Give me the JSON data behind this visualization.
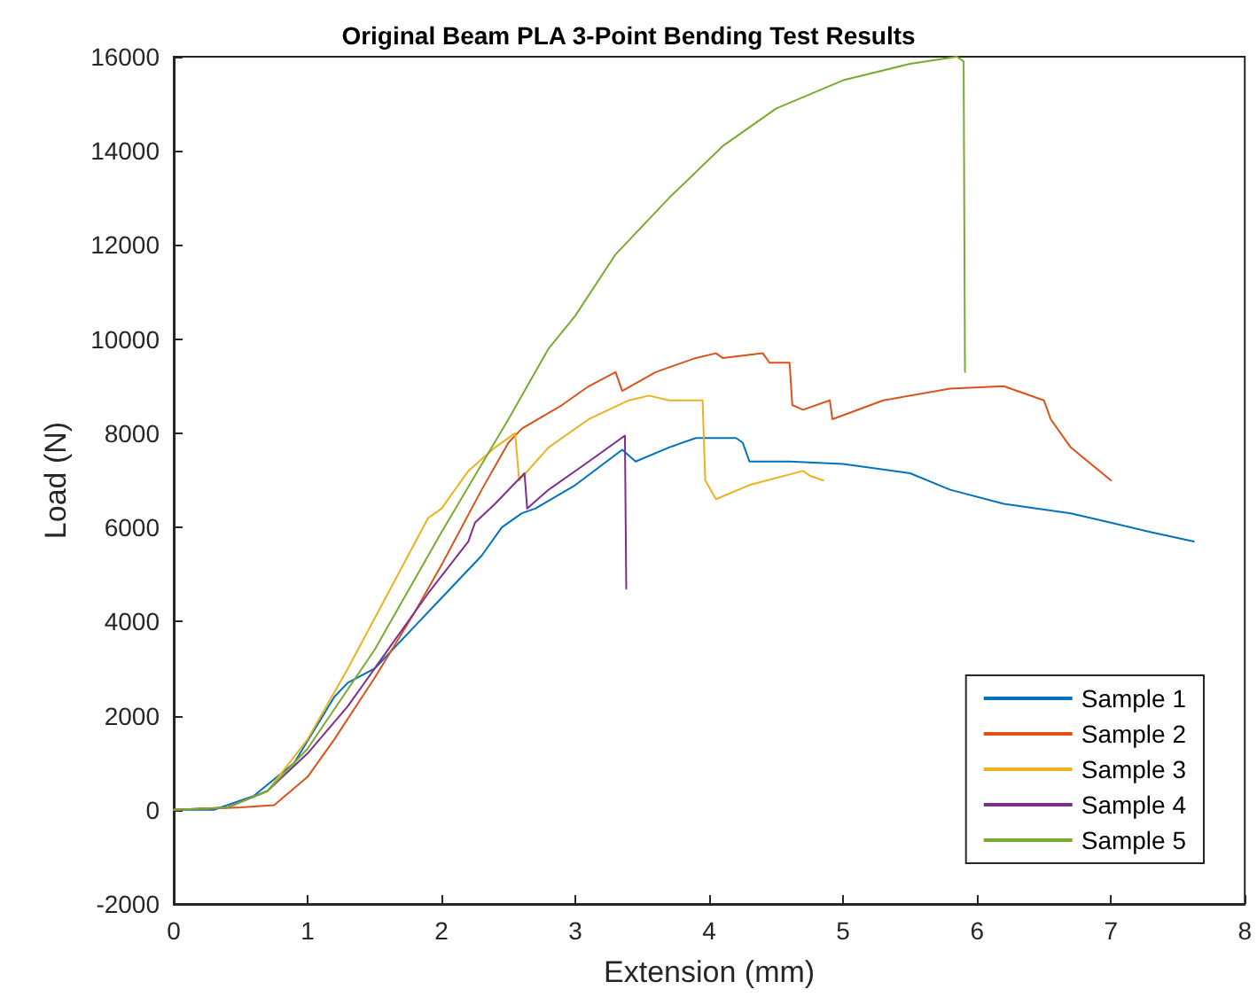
{
  "chart_data": {
    "type": "line",
    "title": "Original Beam PLA 3-Point Bending Test Results",
    "xlabel": "Extension (mm)",
    "ylabel": "Load (N)",
    "xlim": [
      0,
      8
    ],
    "xticks": [
      0,
      1,
      2,
      3,
      4,
      5,
      6,
      7,
      8
    ],
    "ylim": [
      -2000,
      16000
    ],
    "yticks": [
      -2000,
      0,
      2000,
      4000,
      6000,
      8000,
      10000,
      12000,
      14000,
      16000
    ],
    "grid": false,
    "legend": "bottom right",
    "marker": "none",
    "line_style": "solid",
    "series": [
      {
        "name": "Sample 1",
        "color": "#0072bd",
        "x": [
          0,
          0.3,
          0.6,
          0.9,
          1.2,
          1.3,
          1.5,
          1.8,
          2.0,
          2.3,
          2.45,
          2.6,
          2.7,
          3.0,
          3.35,
          3.45,
          3.7,
          3.9,
          4.2,
          4.25,
          4.3,
          4.6,
          5.0,
          5.5,
          5.8,
          6.2,
          6.7,
          7.0,
          7.3,
          7.62
        ],
        "values": [
          0,
          0,
          300,
          1000,
          2400,
          2700,
          3000,
          3900,
          4500,
          5400,
          6000,
          6300,
          6400,
          6900,
          7650,
          7400,
          7700,
          7900,
          7900,
          7800,
          7400,
          7400,
          7350,
          7150,
          6800,
          6500,
          6300,
          6100,
          5900,
          5700
        ]
      },
      {
        "name": "Sample 2",
        "color": "#d95319",
        "x": [
          0,
          0.5,
          0.75,
          1.0,
          1.2,
          1.5,
          1.8,
          2.0,
          2.3,
          2.5,
          2.6,
          2.9,
          3.1,
          3.3,
          3.35,
          3.6,
          3.9,
          4.05,
          4.1,
          4.4,
          4.45,
          4.6,
          4.62,
          4.7,
          4.9,
          4.92,
          5.3,
          5.8,
          6.2,
          6.5,
          6.55,
          6.7,
          7.0
        ],
        "values": [
          0,
          50,
          100,
          700,
          1500,
          2800,
          4200,
          5200,
          6800,
          7800,
          8100,
          8600,
          9000,
          9300,
          8900,
          9300,
          9600,
          9700,
          9600,
          9700,
          9500,
          9500,
          8600,
          8500,
          8700,
          8300,
          8700,
          8950,
          9000,
          8700,
          8300,
          7700,
          7000
        ]
      },
      {
        "name": "Sample 3",
        "color": "#edb120",
        "x": [
          0,
          0.4,
          0.7,
          1.0,
          1.3,
          1.6,
          1.9,
          2.0,
          2.2,
          2.4,
          2.55,
          2.58,
          2.8,
          3.1,
          3.4,
          3.55,
          3.7,
          3.95,
          3.97,
          4.05,
          4.3,
          4.7,
          4.75,
          4.85
        ],
        "values": [
          0,
          50,
          400,
          1500,
          3000,
          4600,
          6200,
          6400,
          7200,
          7700,
          8000,
          7000,
          7700,
          8300,
          8700,
          8800,
          8700,
          8700,
          7000,
          6600,
          6900,
          7200,
          7100,
          7000
        ]
      },
      {
        "name": "Sample 4",
        "color": "#7e2f8e",
        "x": [
          0,
          0.4,
          0.7,
          1.0,
          1.3,
          1.6,
          1.9,
          2.2,
          2.25,
          2.4,
          2.62,
          2.64,
          2.8,
          3.1,
          3.37,
          3.38
        ],
        "values": [
          0,
          50,
          400,
          1200,
          2200,
          3400,
          4600,
          5700,
          6100,
          6500,
          7150,
          6400,
          6800,
          7400,
          7950,
          4700
        ]
      },
      {
        "name": "Sample 5",
        "color": "#77ac30",
        "x": [
          0,
          0.4,
          0.7,
          1.0,
          1.5,
          2.0,
          2.5,
          2.8,
          3.0,
          3.3,
          3.7,
          4.1,
          4.5,
          5.0,
          5.5,
          5.85,
          5.9,
          5.91
        ],
        "values": [
          0,
          50,
          400,
          1300,
          3400,
          5900,
          8300,
          9800,
          10500,
          11800,
          13000,
          14100,
          14900,
          15500,
          15850,
          16000,
          15900,
          9300
        ]
      }
    ]
  }
}
